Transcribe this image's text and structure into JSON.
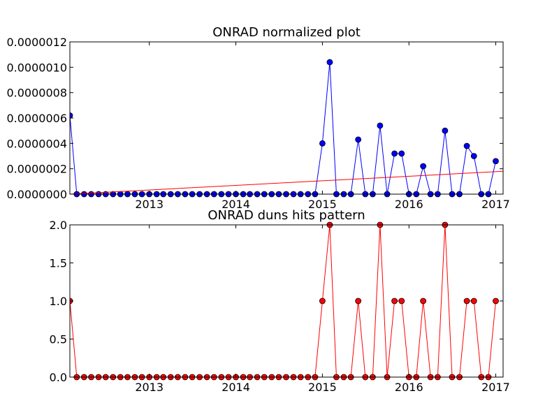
{
  "chart_data": [
    {
      "type": "line",
      "title": "ONRAD normalized plot",
      "xlabel": "",
      "ylabel": "",
      "x_axis": {
        "type": "date",
        "range": [
          "2012-02-01",
          "2017-02-01"
        ],
        "tick_labels": [
          "2013",
          "2014",
          "2015",
          "2016",
          "2017"
        ],
        "tick_dates": [
          "2013-01-01",
          "2014-01-01",
          "2015-01-01",
          "2016-01-01",
          "2017-01-01"
        ]
      },
      "ylim": [
        0,
        1.2e-06
      ],
      "y_tick_labels": [
        "0.0000000",
        "0.0000002",
        "0.0000004",
        "0.0000006",
        "0.0000008",
        "0.0000010",
        "0.0000012"
      ],
      "y_tick_values": [
        0,
        2e-07,
        4e-07,
        6e-07,
        8e-07,
        1e-06,
        1.2e-06
      ],
      "grid": false,
      "series": [
        {
          "color": "#0000ff",
          "marker": "circle",
          "points": [
            [
              "2012-02-01",
              6.2e-07
            ],
            [
              "2012-03-01",
              0
            ],
            [
              "2012-04-01",
              0
            ],
            [
              "2012-05-01",
              0
            ],
            [
              "2012-06-01",
              0
            ],
            [
              "2012-07-01",
              0
            ],
            [
              "2012-08-01",
              0
            ],
            [
              "2012-09-01",
              0
            ],
            [
              "2012-10-01",
              0
            ],
            [
              "2012-11-01",
              0
            ],
            [
              "2012-12-01",
              0
            ],
            [
              "2013-01-01",
              0
            ],
            [
              "2013-02-01",
              0
            ],
            [
              "2013-03-01",
              0
            ],
            [
              "2013-04-01",
              0
            ],
            [
              "2013-05-01",
              0
            ],
            [
              "2013-06-01",
              0
            ],
            [
              "2013-07-01",
              0
            ],
            [
              "2013-08-01",
              0
            ],
            [
              "2013-09-01",
              0
            ],
            [
              "2013-10-01",
              0
            ],
            [
              "2013-11-01",
              0
            ],
            [
              "2013-12-01",
              0
            ],
            [
              "2014-01-01",
              0
            ],
            [
              "2014-02-01",
              0
            ],
            [
              "2014-03-01",
              0
            ],
            [
              "2014-04-01",
              0
            ],
            [
              "2014-05-01",
              0
            ],
            [
              "2014-06-01",
              0
            ],
            [
              "2014-07-01",
              0
            ],
            [
              "2014-08-01",
              0
            ],
            [
              "2014-09-01",
              0
            ],
            [
              "2014-10-01",
              0
            ],
            [
              "2014-11-01",
              0
            ],
            [
              "2014-12-01",
              0
            ],
            [
              "2015-01-01",
              4e-07
            ],
            [
              "2015-02-01",
              1.04e-06
            ],
            [
              "2015-03-01",
              0
            ],
            [
              "2015-04-01",
              0
            ],
            [
              "2015-05-01",
              0
            ],
            [
              "2015-06-01",
              4.3e-07
            ],
            [
              "2015-07-01",
              0
            ],
            [
              "2015-08-01",
              0
            ],
            [
              "2015-09-01",
              5.4e-07
            ],
            [
              "2015-10-01",
              0
            ],
            [
              "2015-11-01",
              3.2e-07
            ],
            [
              "2015-12-01",
              3.2e-07
            ],
            [
              "2016-01-01",
              0
            ],
            [
              "2016-02-01",
              0
            ],
            [
              "2016-03-01",
              2.2e-07
            ],
            [
              "2016-04-01",
              0
            ],
            [
              "2016-05-01",
              0
            ],
            [
              "2016-06-01",
              5e-07
            ],
            [
              "2016-07-01",
              0
            ],
            [
              "2016-08-01",
              0
            ],
            [
              "2016-09-01",
              3.8e-07
            ],
            [
              "2016-10-01",
              3e-07
            ],
            [
              "2016-11-01",
              0
            ],
            [
              "2016-12-01",
              0
            ],
            [
              "2017-01-01",
              2.6e-07
            ]
          ]
        },
        {
          "color": "#ff0000",
          "marker": "none",
          "points": [
            [
              "2012-02-01",
              0
            ],
            [
              "2017-02-01",
              1.8e-07
            ]
          ]
        }
      ]
    },
    {
      "type": "line",
      "title": "ONRAD duns hits pattern",
      "xlabel": "",
      "ylabel": "",
      "x_axis": {
        "type": "date",
        "range": [
          "2012-02-01",
          "2017-02-01"
        ],
        "tick_labels": [
          "2013",
          "2014",
          "2015",
          "2016",
          "2017"
        ],
        "tick_dates": [
          "2013-01-01",
          "2014-01-01",
          "2015-01-01",
          "2016-01-01",
          "2017-01-01"
        ]
      },
      "ylim": [
        0,
        2
      ],
      "y_tick_labels": [
        "0.0",
        "0.5",
        "1.0",
        "1.5",
        "2.0"
      ],
      "y_tick_values": [
        0,
        0.5,
        1,
        1.5,
        2
      ],
      "grid": false,
      "series": [
        {
          "color": "#ff0000",
          "marker": "circle",
          "points": [
            [
              "2012-02-01",
              1
            ],
            [
              "2012-03-01",
              0
            ],
            [
              "2012-04-01",
              0
            ],
            [
              "2012-05-01",
              0
            ],
            [
              "2012-06-01",
              0
            ],
            [
              "2012-07-01",
              0
            ],
            [
              "2012-08-01",
              0
            ],
            [
              "2012-09-01",
              0
            ],
            [
              "2012-10-01",
              0
            ],
            [
              "2012-11-01",
              0
            ],
            [
              "2012-12-01",
              0
            ],
            [
              "2013-01-01",
              0
            ],
            [
              "2013-02-01",
              0
            ],
            [
              "2013-03-01",
              0
            ],
            [
              "2013-04-01",
              0
            ],
            [
              "2013-05-01",
              0
            ],
            [
              "2013-06-01",
              0
            ],
            [
              "2013-07-01",
              0
            ],
            [
              "2013-08-01",
              0
            ],
            [
              "2013-09-01",
              0
            ],
            [
              "2013-10-01",
              0
            ],
            [
              "2013-11-01",
              0
            ],
            [
              "2013-12-01",
              0
            ],
            [
              "2014-01-01",
              0
            ],
            [
              "2014-02-01",
              0
            ],
            [
              "2014-03-01",
              0
            ],
            [
              "2014-04-01",
              0
            ],
            [
              "2014-05-01",
              0
            ],
            [
              "2014-06-01",
              0
            ],
            [
              "2014-07-01",
              0
            ],
            [
              "2014-08-01",
              0
            ],
            [
              "2014-09-01",
              0
            ],
            [
              "2014-10-01",
              0
            ],
            [
              "2014-11-01",
              0
            ],
            [
              "2014-12-01",
              0
            ],
            [
              "2015-01-01",
              1
            ],
            [
              "2015-02-01",
              2
            ],
            [
              "2015-03-01",
              0
            ],
            [
              "2015-04-01",
              0
            ],
            [
              "2015-05-01",
              0
            ],
            [
              "2015-06-01",
              1
            ],
            [
              "2015-07-01",
              0
            ],
            [
              "2015-08-01",
              0
            ],
            [
              "2015-09-01",
              2
            ],
            [
              "2015-10-01",
              0
            ],
            [
              "2015-11-01",
              1
            ],
            [
              "2015-12-01",
              1
            ],
            [
              "2016-01-01",
              0
            ],
            [
              "2016-02-01",
              0
            ],
            [
              "2016-03-01",
              1
            ],
            [
              "2016-04-01",
              0
            ],
            [
              "2016-05-01",
              0
            ],
            [
              "2016-06-01",
              2
            ],
            [
              "2016-07-01",
              0
            ],
            [
              "2016-08-01",
              0
            ],
            [
              "2016-09-01",
              1
            ],
            [
              "2016-10-01",
              1
            ],
            [
              "2016-11-01",
              0
            ],
            [
              "2016-12-01",
              0
            ],
            [
              "2017-01-01",
              1
            ]
          ]
        }
      ]
    }
  ]
}
